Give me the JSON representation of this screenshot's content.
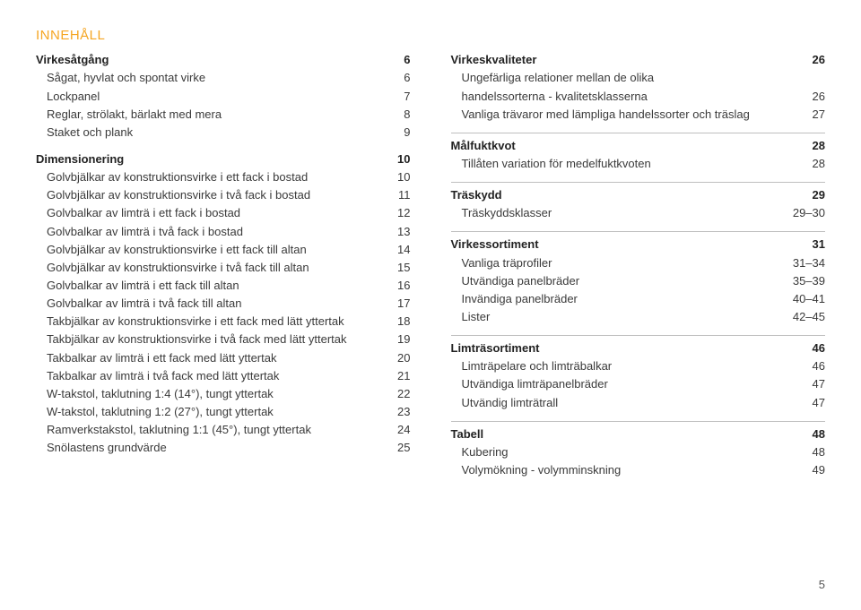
{
  "heading": "INNEHÅLL",
  "heading_color": "#f5a623",
  "text_color": "#3a3a3a",
  "divider_color": "#bfbfbf",
  "page_number": "5",
  "left": [
    {
      "type": "section",
      "rows": [
        {
          "label": "Virkesåtgång",
          "page": "6",
          "bold": true
        },
        {
          "label": "Sågat, hyvlat och spontat virke",
          "page": "6",
          "sub": true
        },
        {
          "label": "Lockpanel",
          "page": "7",
          "sub": true
        },
        {
          "label": "Reglar, strölakt, bärlakt med mera",
          "page": "8",
          "sub": true
        },
        {
          "label": "Staket och plank",
          "page": "9",
          "sub": true
        }
      ]
    },
    {
      "type": "section",
      "rows": [
        {
          "label": "Dimensionering",
          "page": "10",
          "bold": true
        },
        {
          "label": "Golvbjälkar av konstruktionsvirke i ett fack i bostad",
          "page": "10",
          "sub": true
        },
        {
          "label": "Golvbjälkar av konstruktionsvirke i två fack i bostad",
          "page": "11",
          "sub": true
        },
        {
          "label": "Golvbalkar av limträ i ett fack i bostad",
          "page": "12",
          "sub": true
        },
        {
          "label": "Golvbalkar av limträ i två fack i bostad",
          "page": "13",
          "sub": true
        },
        {
          "label": "Golvbjälkar av konstruktionsvirke i ett fack till altan",
          "page": "14",
          "sub": true
        },
        {
          "label": "Golvbjälkar av konstruktionsvirke i två fack till altan",
          "page": "15",
          "sub": true
        },
        {
          "label": "Golvbalkar av limträ i ett fack till altan",
          "page": "16",
          "sub": true
        },
        {
          "label": "Golvbalkar av limträ i två fack till altan",
          "page": "17",
          "sub": true
        },
        {
          "label": "Takbjälkar av konstruktionsvirke i ett fack med lätt yttertak",
          "page": "18",
          "sub": true
        },
        {
          "label": "Takbjälkar av konstruktionsvirke i två fack med lätt yttertak",
          "page": "19",
          "sub": true
        },
        {
          "label": "Takbalkar av limträ i ett fack med lätt yttertak",
          "page": "20",
          "sub": true
        },
        {
          "label": "Takbalkar av limträ i två fack med lätt yttertak",
          "page": "21",
          "sub": true
        },
        {
          "label": "W-takstol, taklutning 1:4 (14°), tungt yttertak",
          "page": "22",
          "sub": true
        },
        {
          "label": "W-takstol, taklutning 1:2 (27°), tungt yttertak",
          "page": "23",
          "sub": true
        },
        {
          "label": "Ramverkstakstol, taklutning 1:1 (45°), tungt yttertak",
          "page": "24",
          "sub": true
        },
        {
          "label": "Snölastens grundvärde",
          "page": "25",
          "sub": true
        }
      ]
    }
  ],
  "right": [
    {
      "type": "section",
      "rows": [
        {
          "label": "Virkeskvaliteter",
          "page": "26",
          "bold": true
        },
        {
          "label": "Ungefärliga relationer mellan de olika",
          "page": "",
          "sub": true
        },
        {
          "label": "handelssorterna - kvalitetsklasserna",
          "page": "26",
          "sub": true
        },
        {
          "label": "Vanliga trävaror med lämpliga handelssorter och träslag",
          "page": "27",
          "sub": true
        }
      ]
    },
    {
      "type": "divider"
    },
    {
      "type": "section",
      "rows": [
        {
          "label": "Målfuktkvot",
          "page": "28",
          "bold": true
        },
        {
          "label": "Tillåten variation för medelfuktkvoten",
          "page": "28",
          "sub": true
        }
      ]
    },
    {
      "type": "divider"
    },
    {
      "type": "section",
      "rows": [
        {
          "label": "Träskydd",
          "page": "29",
          "bold": true
        },
        {
          "label": "Träskyddsklasser",
          "page": "29–30",
          "sub": true
        }
      ]
    },
    {
      "type": "divider"
    },
    {
      "type": "section",
      "rows": [
        {
          "label": "Virkessortiment",
          "page": "31",
          "bold": true
        },
        {
          "label": "Vanliga träprofiler",
          "page": "31–34",
          "sub": true
        },
        {
          "label": "Utvändiga panelbräder",
          "page": "35–39",
          "sub": true
        },
        {
          "label": "Invändiga panelbräder",
          "page": "40–41",
          "sub": true
        },
        {
          "label": "Lister",
          "page": "42–45",
          "sub": true
        }
      ]
    },
    {
      "type": "divider"
    },
    {
      "type": "section",
      "rows": [
        {
          "label": "Limträsortiment",
          "page": "46",
          "bold": true
        },
        {
          "label": "Limträpelare och limträbalkar",
          "page": "46",
          "sub": true
        },
        {
          "label": "Utvändiga limträpanelbräder",
          "page": "47",
          "sub": true
        },
        {
          "label": "Utvändig limträtrall",
          "page": "47",
          "sub": true
        }
      ]
    },
    {
      "type": "divider"
    },
    {
      "type": "section",
      "rows": [
        {
          "label": "Tabell",
          "page": "48",
          "bold": true
        },
        {
          "label": "Kubering",
          "page": "48",
          "sub": true
        },
        {
          "label": "Volymökning - volymminskning",
          "page": "49",
          "sub": true
        }
      ]
    }
  ]
}
